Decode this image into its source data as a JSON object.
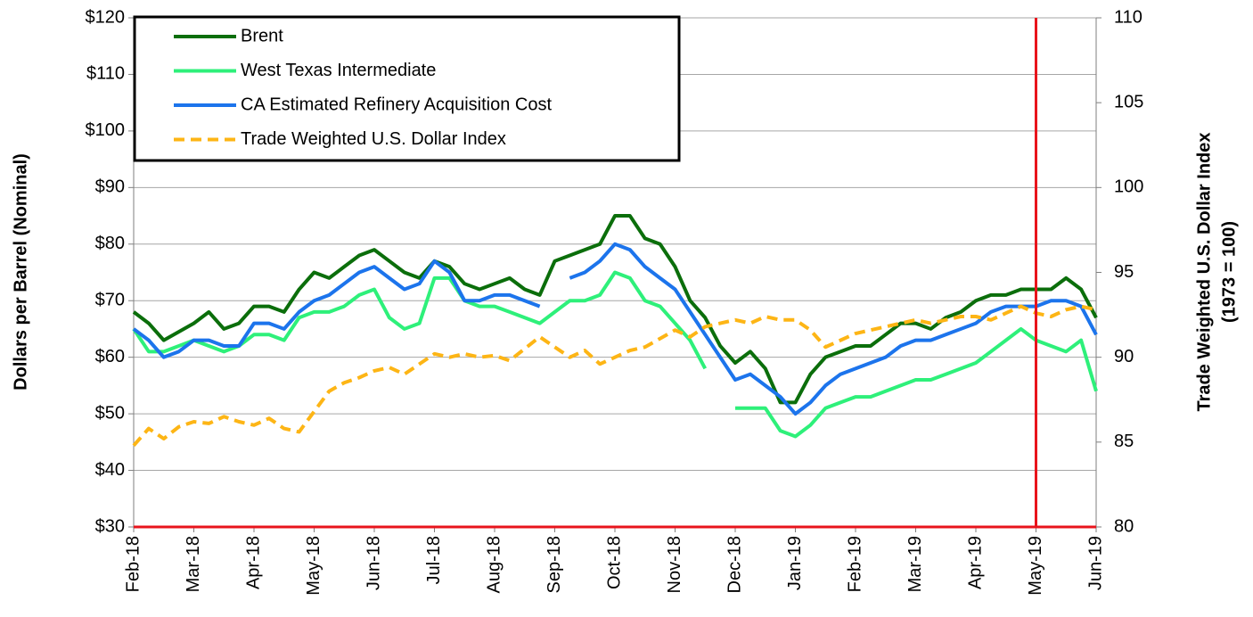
{
  "chart_data": {
    "type": "line",
    "y_label": "Dollars per Barrel (Nominal)",
    "y2_label": [
      "Trade Weighted U.S. Dollar Index",
      "(1973 = 100)"
    ],
    "categories": [
      "Feb-18",
      null,
      null,
      null,
      "Mar-18",
      null,
      null,
      null,
      "Apr-18",
      null,
      null,
      null,
      "May-18",
      null,
      null,
      null,
      "Jun-18",
      null,
      null,
      null,
      "Jul-18",
      null,
      null,
      null,
      "Aug-18",
      null,
      null,
      null,
      "Sep-18",
      null,
      null,
      null,
      "Oct-18",
      null,
      null,
      null,
      "Nov-18",
      null,
      null,
      null,
      "Dec-18",
      null,
      null,
      null,
      "Jan-19",
      null,
      null,
      null,
      "Feb-19",
      null,
      null,
      null,
      "Mar-19",
      null,
      null,
      null,
      "Apr-19",
      null,
      null,
      null,
      "May-19",
      null,
      null,
      null,
      "Jun-19"
    ],
    "ylim": [
      30,
      120
    ],
    "yticks": [
      {
        "value": 30,
        "label": "$30"
      },
      {
        "value": 40,
        "label": "$40"
      },
      {
        "value": 50,
        "label": "$50"
      },
      {
        "value": 60,
        "label": "$60"
      },
      {
        "value": 70,
        "label": "$70"
      },
      {
        "value": 80,
        "label": "$80"
      },
      {
        "value": 90,
        "label": "$90"
      },
      {
        "value": 100,
        "label": "$100"
      },
      {
        "value": 110,
        "label": "$110"
      },
      {
        "value": 120,
        "label": "$120"
      }
    ],
    "y2lim": [
      80,
      110
    ],
    "y2ticks": [
      80,
      85,
      90,
      95,
      100,
      105,
      110
    ],
    "grid": true,
    "legend": "top-left",
    "series": [
      {
        "name": "Brent",
        "color": "#0b6e0b",
        "dashed": false,
        "values": [
          68,
          66,
          63,
          64.5,
          66,
          68,
          65,
          66,
          69,
          69,
          68,
          72,
          75,
          74,
          76,
          78,
          79,
          77,
          75,
          74,
          77,
          76,
          73,
          72,
          73,
          74,
          72,
          71,
          77,
          78,
          79,
          80,
          85,
          85,
          81,
          80,
          76,
          70,
          67,
          62,
          59,
          61,
          58,
          52,
          52,
          57,
          60,
          61,
          62,
          62,
          64,
          66,
          66,
          65,
          67,
          68,
          70,
          71,
          71,
          72,
          72,
          72,
          74,
          72,
          67
        ]
      },
      {
        "name": "West Texas Intermediate",
        "color": "#2ef07a",
        "dashed": false,
        "values": [
          65,
          61,
          61,
          62,
          63,
          62,
          61,
          62,
          64,
          64,
          63,
          67,
          68,
          68,
          69,
          71,
          72,
          67,
          65,
          66,
          74,
          74,
          70,
          69,
          69,
          68,
          67,
          66,
          68,
          70,
          70,
          71,
          75,
          74,
          70,
          69,
          66,
          63,
          58,
          null,
          51,
          51,
          51,
          47,
          46,
          48,
          51,
          52,
          53,
          53,
          54,
          55,
          56,
          56,
          57,
          58,
          59,
          61,
          63,
          65,
          63,
          62,
          61,
          63,
          54
        ]
      },
      {
        "name": "CA Estimated Refinery Acquisition Cost",
        "color": "#1c74ec",
        "dashed": false,
        "values": [
          65,
          63,
          60,
          61,
          63,
          63,
          62,
          62,
          66,
          66,
          65,
          68,
          70,
          71,
          73,
          75,
          76,
          74,
          72,
          73,
          77,
          75,
          70,
          70,
          71,
          71,
          70,
          69,
          null,
          74,
          75,
          77,
          80,
          79,
          76,
          74,
          72,
          68,
          64,
          60,
          56,
          57,
          55,
          53,
          50,
          52,
          55,
          57,
          58,
          59,
          60,
          62,
          63,
          63,
          64,
          65,
          66,
          68,
          69,
          69,
          69,
          70,
          70,
          69,
          64
        ]
      },
      {
        "name": "Trade Weighted U.S. Dollar Index",
        "color": "#fdb515",
        "dashed": true,
        "axis": "y2",
        "values": [
          84.8,
          85.8,
          85.2,
          85.9,
          86.2,
          86.1,
          86.5,
          86.2,
          86.0,
          86.4,
          85.8,
          85.6,
          86.8,
          88.0,
          88.5,
          88.8,
          89.2,
          89.4,
          89.0,
          89.6,
          90.2,
          90.0,
          90.2,
          90.0,
          90.1,
          89.8,
          90.5,
          91.2,
          90.6,
          90.0,
          90.4,
          89.6,
          90.0,
          90.4,
          90.6,
          91.1,
          91.6,
          91.2,
          91.8,
          92.0,
          92.2,
          92.0,
          92.4,
          92.2,
          92.2,
          91.6,
          90.6,
          91.0,
          91.4,
          91.6,
          91.8,
          92.0,
          92.2,
          92.0,
          92.2,
          92.4,
          92.4,
          92.2,
          92.6,
          93.0,
          92.6,
          92.4,
          92.8,
          93.0,
          92.8
        ]
      }
    ]
  }
}
